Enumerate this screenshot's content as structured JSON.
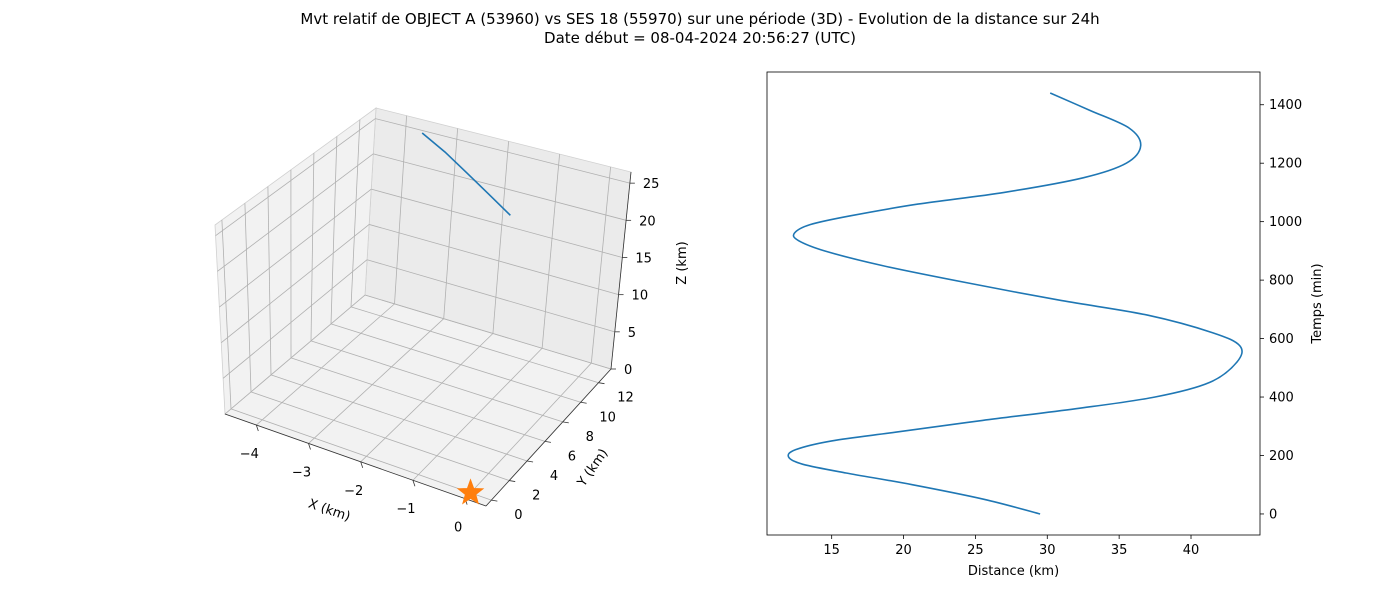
{
  "title_line1": "Mvt relatif de OBJECT A (53960) vs SES 18 (55970) sur une période (3D) - Evolution de la distance sur 24h",
  "title_line2": "Date début = 08-04-2024 20:56:27 (UTC)",
  "colors": {
    "series": "#1f77b4",
    "marker": "#ff7f0e"
  },
  "chart_data": [
    {
      "type": "line3d",
      "xlabel": "X (km)",
      "ylabel": "Y (km)",
      "zlabel": "Z (km)",
      "x_ticks": [
        "−4",
        "−3",
        "−2",
        "−1",
        "0"
      ],
      "y_ticks": [
        "0",
        "2",
        "4",
        "6",
        "8",
        "10",
        "12"
      ],
      "z_ticks": [
        "0",
        "5",
        "10",
        "15",
        "20",
        "25"
      ],
      "xlim": [
        -4.6,
        0.4
      ],
      "ylim": [
        -0.6,
        13.4
      ],
      "zlim": [
        0,
        26.5
      ],
      "grid": true,
      "series": [
        {
          "x": [
            -3.5,
            -3.0,
            -2.5,
            -2.0,
            -1.5
          ],
          "y": [
            12.4,
            12.2,
            11.9,
            11.6,
            11.3
          ],
          "z": [
            26.2,
            24.7,
            23.1,
            21.5,
            19.9
          ]
        }
      ],
      "marker": {
        "symbol": "star",
        "x": 0,
        "y": 0,
        "z": 0
      }
    },
    {
      "type": "line",
      "xlabel": "Distance (km)",
      "ylabel": "Temps (min)",
      "x_ticks": [
        "15",
        "20",
        "25",
        "30",
        "35",
        "40"
      ],
      "y_ticks": [
        "0",
        "200",
        "400",
        "600",
        "800",
        "1000",
        "1200",
        "1400"
      ],
      "xlim": [
        10.5,
        44.8
      ],
      "ylim": [
        -72,
        1512
      ],
      "yaxis_position": "right",
      "grid": false,
      "series": [
        {
          "distance": [
            29.5,
            25.6,
            20.6,
            16.0,
            13.0,
            12.0,
            12.5,
            15.0,
            19.5,
            25.5,
            32.0,
            37.5,
            41.3,
            43.2,
            43.4,
            41.5,
            37.0,
            31.0,
            24.5,
            18.5,
            14.5,
            12.7,
            12.4,
            13.5,
            16.3,
            21.0,
            27.0,
            32.5,
            35.5,
            36.5,
            35.7,
            33.0,
            30.2
          ],
          "time": [
            0,
            50,
            100,
            140,
            170,
            195,
            220,
            250,
            280,
            320,
            360,
            400,
            450,
            520,
            575,
            620,
            680,
            730,
            790,
            850,
            900,
            935,
            960,
            990,
            1020,
            1060,
            1100,
            1150,
            1200,
            1260,
            1320,
            1380,
            1440
          ]
        }
      ]
    }
  ]
}
